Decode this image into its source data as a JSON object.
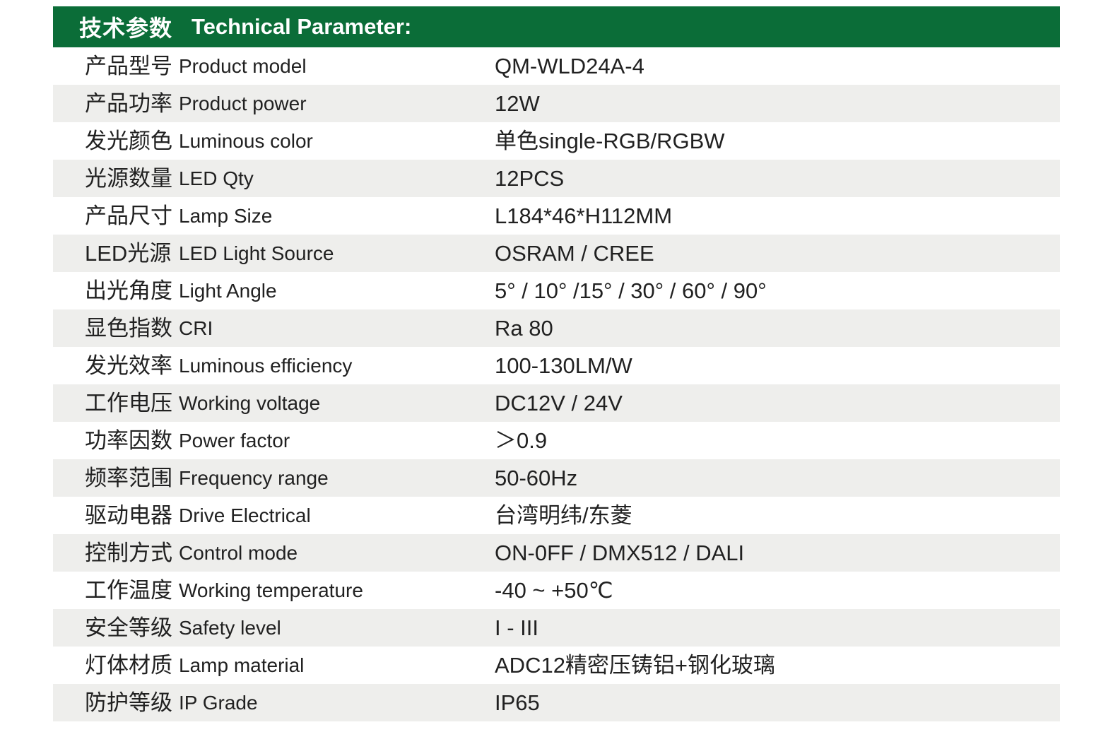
{
  "header": {
    "title_zh": "技术参数",
    "title_en": "Technical Parameter:"
  },
  "colors": {
    "header_bg": "#0b6d38",
    "header_text": "#ffffff",
    "row_alt_bg": "#eeeeec",
    "text": "#212121"
  },
  "table": {
    "columns": [
      "label_zh",
      "label_en",
      "value"
    ],
    "rows": [
      {
        "label_zh": "产品型号",
        "label_en": "Product model",
        "value": "QM-WLD24A-4"
      },
      {
        "label_zh": "产品功率",
        "label_en": "Product power",
        "value": "12W"
      },
      {
        "label_zh": "发光颜色",
        "label_en": "Luminous color",
        "value": "单色single-RGB/RGBW"
      },
      {
        "label_zh": "光源数量",
        "label_en": "LED Qty",
        "value": "12PCS"
      },
      {
        "label_zh": "产品尺寸",
        "label_en": "Lamp Size",
        "value": "L184*46*H112MM"
      },
      {
        "label_zh": "LED光源",
        "label_en": "LED Light Source",
        "value": "OSRAM / CREE"
      },
      {
        "label_zh": "出光角度",
        "label_en": "Light Angle",
        "value": "5° / 10° /15° / 30° / 60° / 90°"
      },
      {
        "label_zh": "显色指数",
        "label_en": "CRI",
        "value": "Ra 80"
      },
      {
        "label_zh": "发光效率",
        "label_en": "Luminous efficiency",
        "value": "100-130LM/W"
      },
      {
        "label_zh": "工作电压",
        "label_en": "Working voltage",
        "value": "DC12V / 24V"
      },
      {
        "label_zh": "功率因数",
        "label_en": "Power factor",
        "value": "＞0.9"
      },
      {
        "label_zh": "频率范围",
        "label_en": "Frequency range",
        "value": "50-60Hz"
      },
      {
        "label_zh": "驱动电器",
        "label_en": "Drive Electrical",
        "value": "台湾明纬/东菱"
      },
      {
        "label_zh": "控制方式",
        "label_en": "Control mode",
        "value": "ON-0FF / DMX512 / DALI"
      },
      {
        "label_zh": "工作温度",
        "label_en": "Working temperature",
        "value": "-40 ~ +50℃"
      },
      {
        "label_zh": "安全等级",
        "label_en": "Safety level",
        "value": "I - III"
      },
      {
        "label_zh": "灯体材质",
        "label_en": "Lamp material",
        "value": "ADC12精密压铸铝+钢化玻璃"
      },
      {
        "label_zh": "防护等级",
        "label_en": "IP Grade",
        "value": "IP65"
      }
    ]
  }
}
